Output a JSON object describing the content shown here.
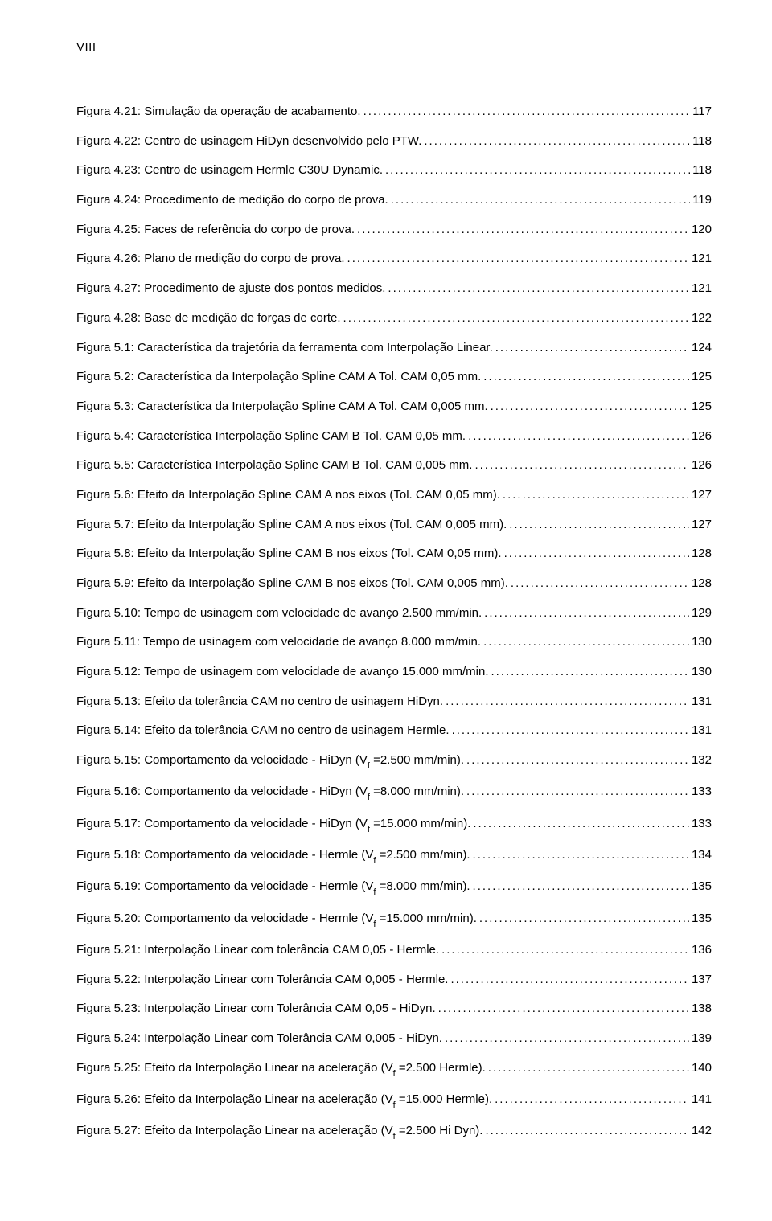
{
  "pageNumber": "VIII",
  "entries": [
    {
      "text": "Figura 4.21: Simulação da operação de acabamento.",
      "page": "117"
    },
    {
      "text": "Figura 4.22: Centro de usinagem HiDyn  desenvolvido pelo PTW.",
      "page": "118"
    },
    {
      "text": "Figura 4.23: Centro de usinagem Hermle C30U Dynamic.",
      "page": "118"
    },
    {
      "text": "Figura 4.24: Procedimento de medição do corpo de prova.",
      "page": "119"
    },
    {
      "text": "Figura 4.25: Faces de referência do corpo de prova.",
      "page": "120"
    },
    {
      "text": "Figura 4.26: Plano de medição do corpo de prova. ",
      "page": "121"
    },
    {
      "text": "Figura 4.27: Procedimento de ajuste dos pontos medidos.",
      "page": "121"
    },
    {
      "text": "Figura 4.28: Base de medição de forças de corte. ",
      "page": "122"
    },
    {
      "text": "Figura 5.1: Característica da trajetória da ferramenta com Interpolação Linear.",
      "page": "124"
    },
    {
      "text": "Figura 5.2: Característica da Interpolação Spline CAM A Tol. CAM 0,05 mm.",
      "page": "125"
    },
    {
      "text": "Figura 5.3: Característica da Interpolação Spline CAM A Tol. CAM 0,005 mm.",
      "page": "125"
    },
    {
      "text": "Figura 5.4: Característica Interpolação Spline CAM B Tol. CAM 0,05 mm.",
      "page": "126"
    },
    {
      "text": "Figura 5.5: Característica Interpolação Spline CAM B Tol. CAM 0,005 mm.",
      "page": "126"
    },
    {
      "text": "Figura 5.6: Efeito da Interpolação Spline CAM A nos eixos (Tol. CAM 0,05 mm).",
      "page": "127"
    },
    {
      "text": "Figura 5.7: Efeito da Interpolação Spline CAM A nos eixos (Tol. CAM 0,005 mm).",
      "page": "127"
    },
    {
      "text": "Figura 5.8: Efeito da Interpolação Spline CAM B nos eixos (Tol. CAM 0,05 mm).",
      "page": "128"
    },
    {
      "text": "Figura 5.9: Efeito da Interpolação Spline CAM B nos eixos (Tol. CAM 0,005 mm).",
      "page": "128"
    },
    {
      "text": "Figura 5.10: Tempo de usinagem com velocidade de avanço 2.500 mm/min.",
      "page": "129"
    },
    {
      "text": "Figura 5.11: Tempo de usinagem com velocidade de avanço 8.000 mm/min.",
      "page": "130"
    },
    {
      "text": "Figura 5.12: Tempo de usinagem com velocidade de avanço 15.000 mm/min.",
      "page": "130"
    },
    {
      "text": "Figura 5.13: Efeito da tolerância CAM no centro de usinagem HiDyn.",
      "page": "131"
    },
    {
      "text": "Figura 5.14: Efeito da tolerância CAM no centro de usinagem Hermle.",
      "page": "131"
    },
    {
      "text": "Figura 5.15: Comportamento da velocidade - HiDyn (V_f =2.500 mm/min).",
      "page": "132",
      "hasSub": true
    },
    {
      "text": "Figura 5.16: Comportamento da velocidade - HiDyn (V_f =8.000 mm/min).",
      "page": "133",
      "hasSub": true
    },
    {
      "text": "Figura 5.17: Comportamento da velocidade - HiDyn (V_f =15.000 mm/min).",
      "page": "133",
      "hasSub": true
    },
    {
      "text": "Figura 5.18: Comportamento da velocidade - Hermle (V_f =2.500 mm/min).",
      "page": "134",
      "hasSub": true
    },
    {
      "text": "Figura 5.19: Comportamento da velocidade - Hermle (V_f =8.000 mm/min).",
      "page": "135",
      "hasSub": true
    },
    {
      "text": "Figura 5.20: Comportamento da velocidade - Hermle (V_f =15.000 mm/min).",
      "page": "135",
      "hasSub": true
    },
    {
      "text": "Figura 5.21: Interpolação Linear com tolerância CAM 0,05 - Hermle.",
      "page": "136"
    },
    {
      "text": "Figura 5.22: Interpolação Linear com Tolerância CAM 0,005 - Hermle.",
      "page": "137"
    },
    {
      "text": "Figura 5.23: Interpolação Linear com Tolerância CAM 0,05 - HiDyn. ",
      "page": "138"
    },
    {
      "text": "Figura 5.24: Interpolação Linear com Tolerância CAM 0,005 - HiDyn. ",
      "page": "139"
    },
    {
      "text": "Figura 5.25: Efeito da Interpolação Linear na aceleração (V_f =2.500 Hermle).",
      "page": "140",
      "hasSub": true
    },
    {
      "text": "Figura 5.26: Efeito da Interpolação Linear na aceleração (V_f =15.000 Hermle).",
      "page": "141",
      "hasSub": true
    },
    {
      "text": "Figura 5.27: Efeito da Interpolação Linear na aceleração (V_f =2.500 Hi Dyn).",
      "page": "142",
      "hasSub": true
    }
  ]
}
